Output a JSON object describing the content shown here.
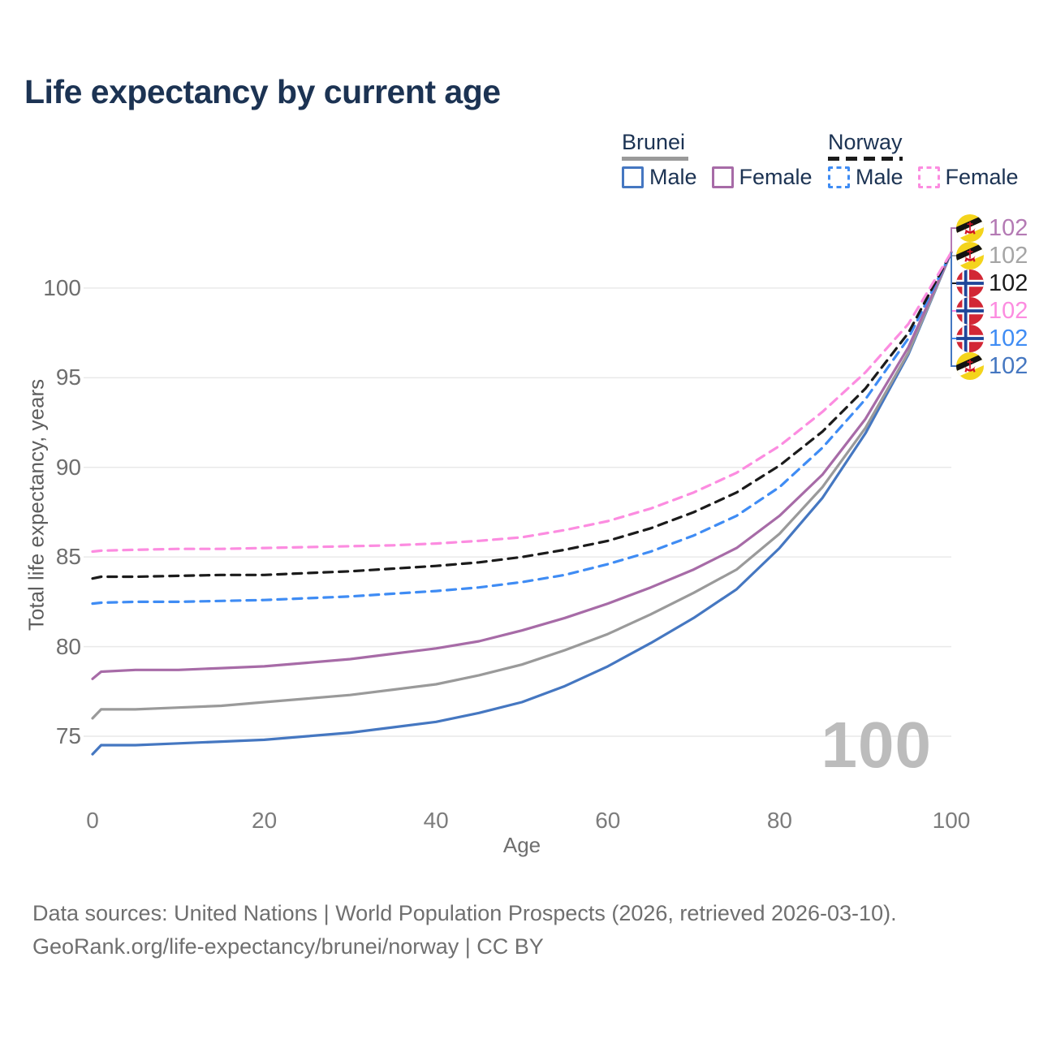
{
  "title": "Life expectancy by current age",
  "legend": {
    "brunei": {
      "label": "Brunei",
      "male_label": "Male",
      "female_label": "Female",
      "male_color": "#4577c1",
      "female_color": "#a76ba7",
      "line_color": "#9a9a9a",
      "line_style": "solid"
    },
    "norway": {
      "label": "Norway",
      "male_label": "Male",
      "female_label": "Female",
      "male_color": "#3f8cf4",
      "female_color": "#fc8ce0",
      "line_color": "#1b1b1b",
      "line_style": "dashed"
    }
  },
  "current_age_watermark": "100",
  "chart_data": {
    "type": "line",
    "title": "Life expectancy by current age",
    "xlabel": "Age",
    "ylabel": "Total life expectancy, years",
    "xlim": [
      0,
      100
    ],
    "ylim": [
      73.5,
      103
    ],
    "x_ticks": [
      0,
      20,
      40,
      60,
      80,
      100
    ],
    "y_ticks": [
      75,
      80,
      85,
      90,
      95,
      100
    ],
    "grid": "horizontal-only",
    "x": [
      0,
      1,
      5,
      10,
      15,
      20,
      25,
      30,
      35,
      40,
      45,
      50,
      55,
      60,
      65,
      70,
      75,
      80,
      85,
      90,
      95,
      100
    ],
    "series": [
      {
        "name": "Brunei Male",
        "country": "Brunei",
        "sex": "Male",
        "color": "#4577c1",
        "dash": "solid",
        "values": [
          74.0,
          74.5,
          74.5,
          74.6,
          74.7,
          74.8,
          75.0,
          75.2,
          75.5,
          75.8,
          76.3,
          76.9,
          77.8,
          78.9,
          80.2,
          81.6,
          83.2,
          85.5,
          88.3,
          91.9,
          96.3,
          102
        ]
      },
      {
        "name": "Brunei Both sexes",
        "country": "Brunei",
        "sex": "Both",
        "color": "#9a9a9a",
        "dash": "solid",
        "values": [
          76.0,
          76.5,
          76.5,
          76.6,
          76.7,
          76.9,
          77.1,
          77.3,
          77.6,
          77.9,
          78.4,
          79.0,
          79.8,
          80.7,
          81.8,
          83.0,
          84.3,
          86.3,
          88.9,
          92.2,
          96.4,
          102
        ]
      },
      {
        "name": "Brunei Female",
        "country": "Brunei",
        "sex": "Female",
        "color": "#a76ba7",
        "dash": "solid",
        "values": [
          78.2,
          78.6,
          78.7,
          78.7,
          78.8,
          78.9,
          79.1,
          79.3,
          79.6,
          79.9,
          80.3,
          80.9,
          81.6,
          82.4,
          83.3,
          84.3,
          85.5,
          87.3,
          89.6,
          92.7,
          96.7,
          102
        ]
      },
      {
        "name": "Norway Male",
        "country": "Norway",
        "sex": "Male",
        "color": "#3f8cf4",
        "dash": "dashed",
        "values": [
          82.4,
          82.45,
          82.5,
          82.5,
          82.55,
          82.6,
          82.7,
          82.8,
          82.95,
          83.1,
          83.3,
          83.6,
          84.0,
          84.6,
          85.3,
          86.2,
          87.3,
          88.9,
          91.1,
          93.8,
          97.2,
          102
        ]
      },
      {
        "name": "Norway Both sexes",
        "country": "Norway",
        "sex": "Both",
        "color": "#1b1b1b",
        "dash": "dashed",
        "values": [
          83.8,
          83.9,
          83.9,
          83.95,
          84.0,
          84.0,
          84.1,
          84.2,
          84.35,
          84.5,
          84.7,
          85.0,
          85.4,
          85.9,
          86.6,
          87.5,
          88.6,
          90.1,
          92.0,
          94.4,
          97.5,
          102
        ]
      },
      {
        "name": "Norway Female",
        "country": "Norway",
        "sex": "Female",
        "color": "#fc8ce0",
        "dash": "dashed",
        "values": [
          85.3,
          85.35,
          85.4,
          85.45,
          85.45,
          85.5,
          85.55,
          85.6,
          85.65,
          85.75,
          85.9,
          86.1,
          86.5,
          87.0,
          87.7,
          88.6,
          89.7,
          91.2,
          93.1,
          95.3,
          98.0,
          102
        ]
      }
    ],
    "end_labels": [
      {
        "series": "Brunei Female",
        "flag": "brunei",
        "value": "102",
        "color": "#b47ab4"
      },
      {
        "series": "Brunei Both sexes",
        "flag": "brunei",
        "value": "102",
        "color": "#a5a5a5"
      },
      {
        "series": "Norway Both sexes",
        "flag": "norway",
        "value": "102",
        "color": "#1b1b1b"
      },
      {
        "series": "Norway Female",
        "flag": "norway",
        "value": "102",
        "color": "#fc8ce0"
      },
      {
        "series": "Norway Male",
        "flag": "norway",
        "value": "102",
        "color": "#3f8cf4"
      },
      {
        "series": "Brunei Male",
        "flag": "brunei",
        "value": "102",
        "color": "#4577c1"
      }
    ]
  },
  "footer": {
    "line1": "Data sources: United Nations | World Population Prospects (2026, retrieved 2026-03-10).",
    "line2": "GeoRank.org/life-expectancy/brunei/norway | CC BY"
  }
}
